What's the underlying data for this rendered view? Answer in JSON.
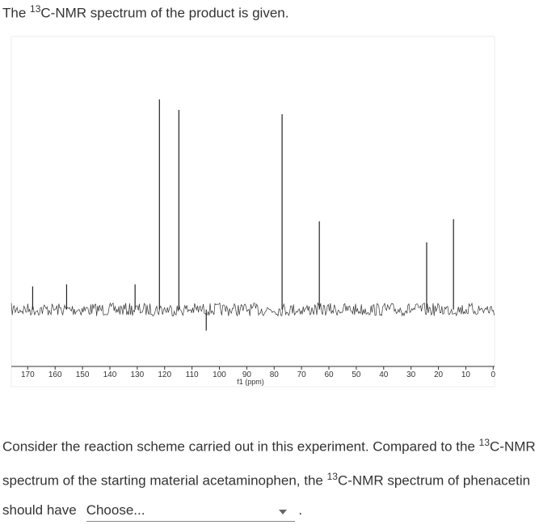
{
  "intro": {
    "before": "The ",
    "sup": "13",
    "after": "C-NMR spectrum of the product is given."
  },
  "chart_data": {
    "type": "stick",
    "x_label": "f1 (ppm)",
    "peaks": {
      "x": [
        168.2,
        155.8,
        130.8,
        121.9,
        114.8,
        104.8,
        77.1,
        63.5,
        24.3,
        14.5
      ],
      "values": [
        11,
        12,
        12,
        100,
        95,
        -10,
        93,
        42,
        32,
        43
      ],
      "color": "#222222"
    },
    "xlim": [
      176,
      -0.5
    ],
    "ylim": [
      -24,
      130
    ],
    "xticks": [
      170,
      160,
      150,
      140,
      130,
      120,
      110,
      100,
      90,
      80,
      70,
      60,
      50,
      40,
      30,
      20,
      10,
      0
    ]
  },
  "question": {
    "part1": "Consider the reaction scheme carried out in this experiment. Compared to the ",
    "sup1": "13",
    "part2": "C-NMR spectrum of the starting material acetaminophen, the ",
    "sup2": "13",
    "part3": "C-NMR spectrum of phenacetin should have",
    "dropdown": "Choose...",
    "end": "."
  }
}
